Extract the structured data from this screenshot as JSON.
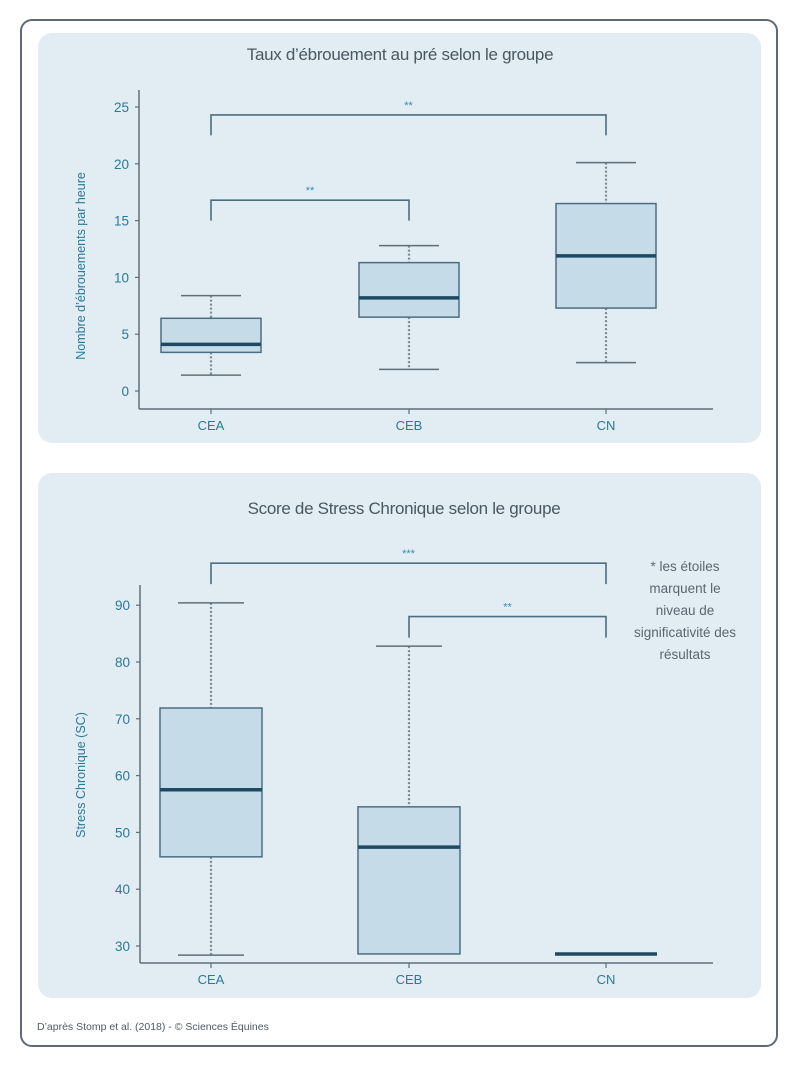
{
  "chart_data": [
    {
      "type": "box",
      "title": "Taux d’ébrouement au pré selon le groupe",
      "xlabel": "",
      "ylabel": "Nombre d’ébrouements par heure",
      "ylim": [
        -1.5,
        26.5
      ],
      "yticks": [
        0,
        5,
        10,
        15,
        20,
        25
      ],
      "categories": [
        "CEA",
        "CEB",
        "CN"
      ],
      "boxes": [
        {
          "name": "CEA",
          "min": 1.4,
          "q1": 3.4,
          "median": 4.1,
          "q3": 6.4,
          "max": 8.4
        },
        {
          "name": "CEB",
          "min": 1.9,
          "q1": 6.5,
          "median": 8.2,
          "q3": 11.3,
          "max": 12.8
        },
        {
          "name": "CN",
          "min": 2.5,
          "q1": 7.3,
          "median": 11.9,
          "q3": 16.5,
          "max": 20.1
        }
      ],
      "significance": [
        {
          "from": "CEA",
          "to": "CN",
          "label": "**",
          "level": 24.3,
          "drop": 22.5
        },
        {
          "from": "CEA",
          "to": "CEB",
          "label": "**",
          "level": 16.8,
          "drop": 15.0
        }
      ],
      "grid": false
    },
    {
      "type": "box",
      "title": "Score de Stress Chronique selon le groupe",
      "xlabel": "",
      "ylabel": "Stress Chronique (SC)",
      "ylim": [
        27.1,
        93.4
      ],
      "yticks": [
        30,
        40,
        50,
        60,
        70,
        80,
        90
      ],
      "categories": [
        "CEA",
        "CEB",
        "CN"
      ],
      "boxes": [
        {
          "name": "CEA",
          "min": 28.4,
          "q1": 45.7,
          "median": 57.5,
          "q3": 71.9,
          "max": 90.4
        },
        {
          "name": "CEB",
          "min": 28.6,
          "q1": 28.6,
          "median": 47.4,
          "q3": 54.5,
          "max": 82.8
        },
        {
          "name": "CN",
          "min": 28.6,
          "q1": 28.6,
          "median": 28.6,
          "q3": 28.6,
          "max": 28.6
        }
      ],
      "significance": [
        {
          "from": "CEA",
          "to": "CN",
          "label": "***",
          "level": 97.4,
          "drop": 93.7
        },
        {
          "from": "CEB",
          "to": "CN",
          "label": "**",
          "level": 88.0,
          "drop": 84.3
        }
      ],
      "grid": false
    }
  ],
  "note": {
    "lines": [
      "* les étoiles",
      "marquent le",
      "niveau de",
      "significativité des",
      "résultats"
    ]
  },
  "credit": "D’après Stomp et al. (2018) - © Sciences Équines",
  "colors": {
    "panel_bg": "#e1ecf3",
    "box_fill": "#c5dce8",
    "box_stroke": "#4d6e82",
    "median": "#1e4a63",
    "whisker_dotted": "#7b8a94",
    "axis": "#5f6f7a",
    "label_blue": "#2b7a99"
  }
}
